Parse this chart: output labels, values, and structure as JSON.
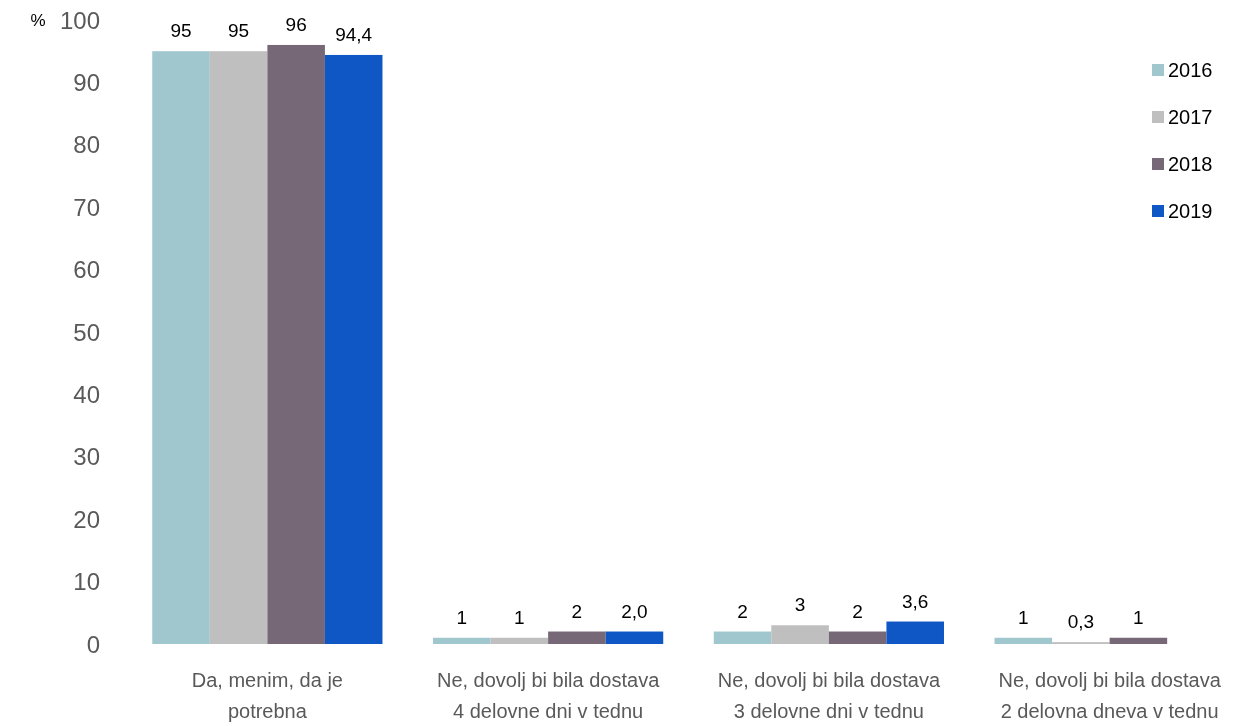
{
  "chart_data": {
    "type": "bar",
    "ylabel": "%",
    "categories": [
      "Da, menim, da je potrebna",
      "Ne, dovolj bi bila dostava 4 delovne dni v tednu",
      "Ne, dovolj bi bila dostava 3 delovne dni v tednu",
      "Ne, dovolj bi bila dostava 2 delovna dneva v tednu"
    ],
    "series": [
      {
        "name": "2016",
        "color": "#9fc7cd",
        "values": [
          95,
          1,
          2,
          1
        ],
        "value_labels": [
          "95",
          "1",
          "2",
          "1"
        ]
      },
      {
        "name": "2017",
        "color": "#bfbfbf",
        "values": [
          95,
          1,
          3,
          0.3
        ],
        "value_labels": [
          "95",
          "1",
          "3",
          "0,3"
        ]
      },
      {
        "name": "2018",
        "color": "#776878",
        "values": [
          96,
          2,
          2,
          1
        ],
        "value_labels": [
          "96",
          "2",
          "2",
          "1"
        ]
      },
      {
        "name": "2019",
        "color": "#0f57c5",
        "values": [
          94.4,
          2.0,
          3.6,
          null
        ],
        "value_labels": [
          "94,4",
          "2,0",
          "3,6",
          null
        ]
      }
    ],
    "ylim": [
      0,
      100
    ],
    "yticks": [
      0,
      10,
      20,
      30,
      40,
      50,
      60,
      70,
      80,
      90,
      100
    ],
    "legend": "right"
  }
}
